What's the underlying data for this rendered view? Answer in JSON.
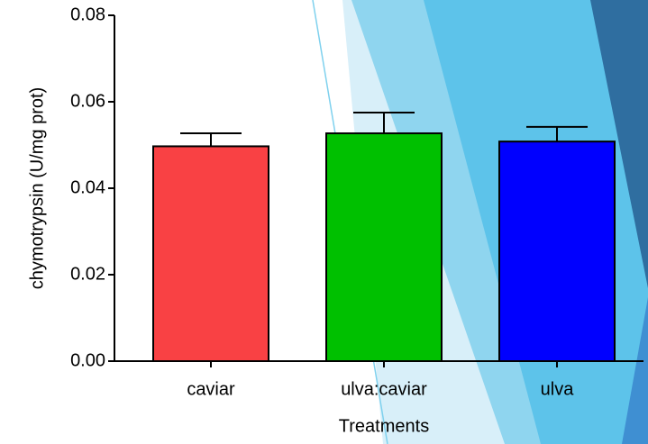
{
  "chart_data": {
    "type": "bar",
    "x_label": "Treatments",
    "y_label": "chymotrypsin (U/mg prot)",
    "categories": [
      "caviar",
      "ulva:caviar",
      "ulva"
    ],
    "values": [
      0.0497,
      0.0527,
      0.0508
    ],
    "errors": [
      0.003,
      0.0048,
      0.0034
    ],
    "colors": [
      "#f94144",
      "#00c000",
      "#0000ff"
    ],
    "ylim": [
      0,
      0.08
    ],
    "yticks": [
      {
        "value": 0,
        "label": "0.00"
      },
      {
        "value": 0.02,
        "label": "0.02"
      },
      {
        "value": 0.04,
        "label": "0.04"
      },
      {
        "value": 0.06,
        "label": "0.06"
      },
      {
        "value": 0.08,
        "label": "0.08"
      }
    ],
    "grid": false
  }
}
